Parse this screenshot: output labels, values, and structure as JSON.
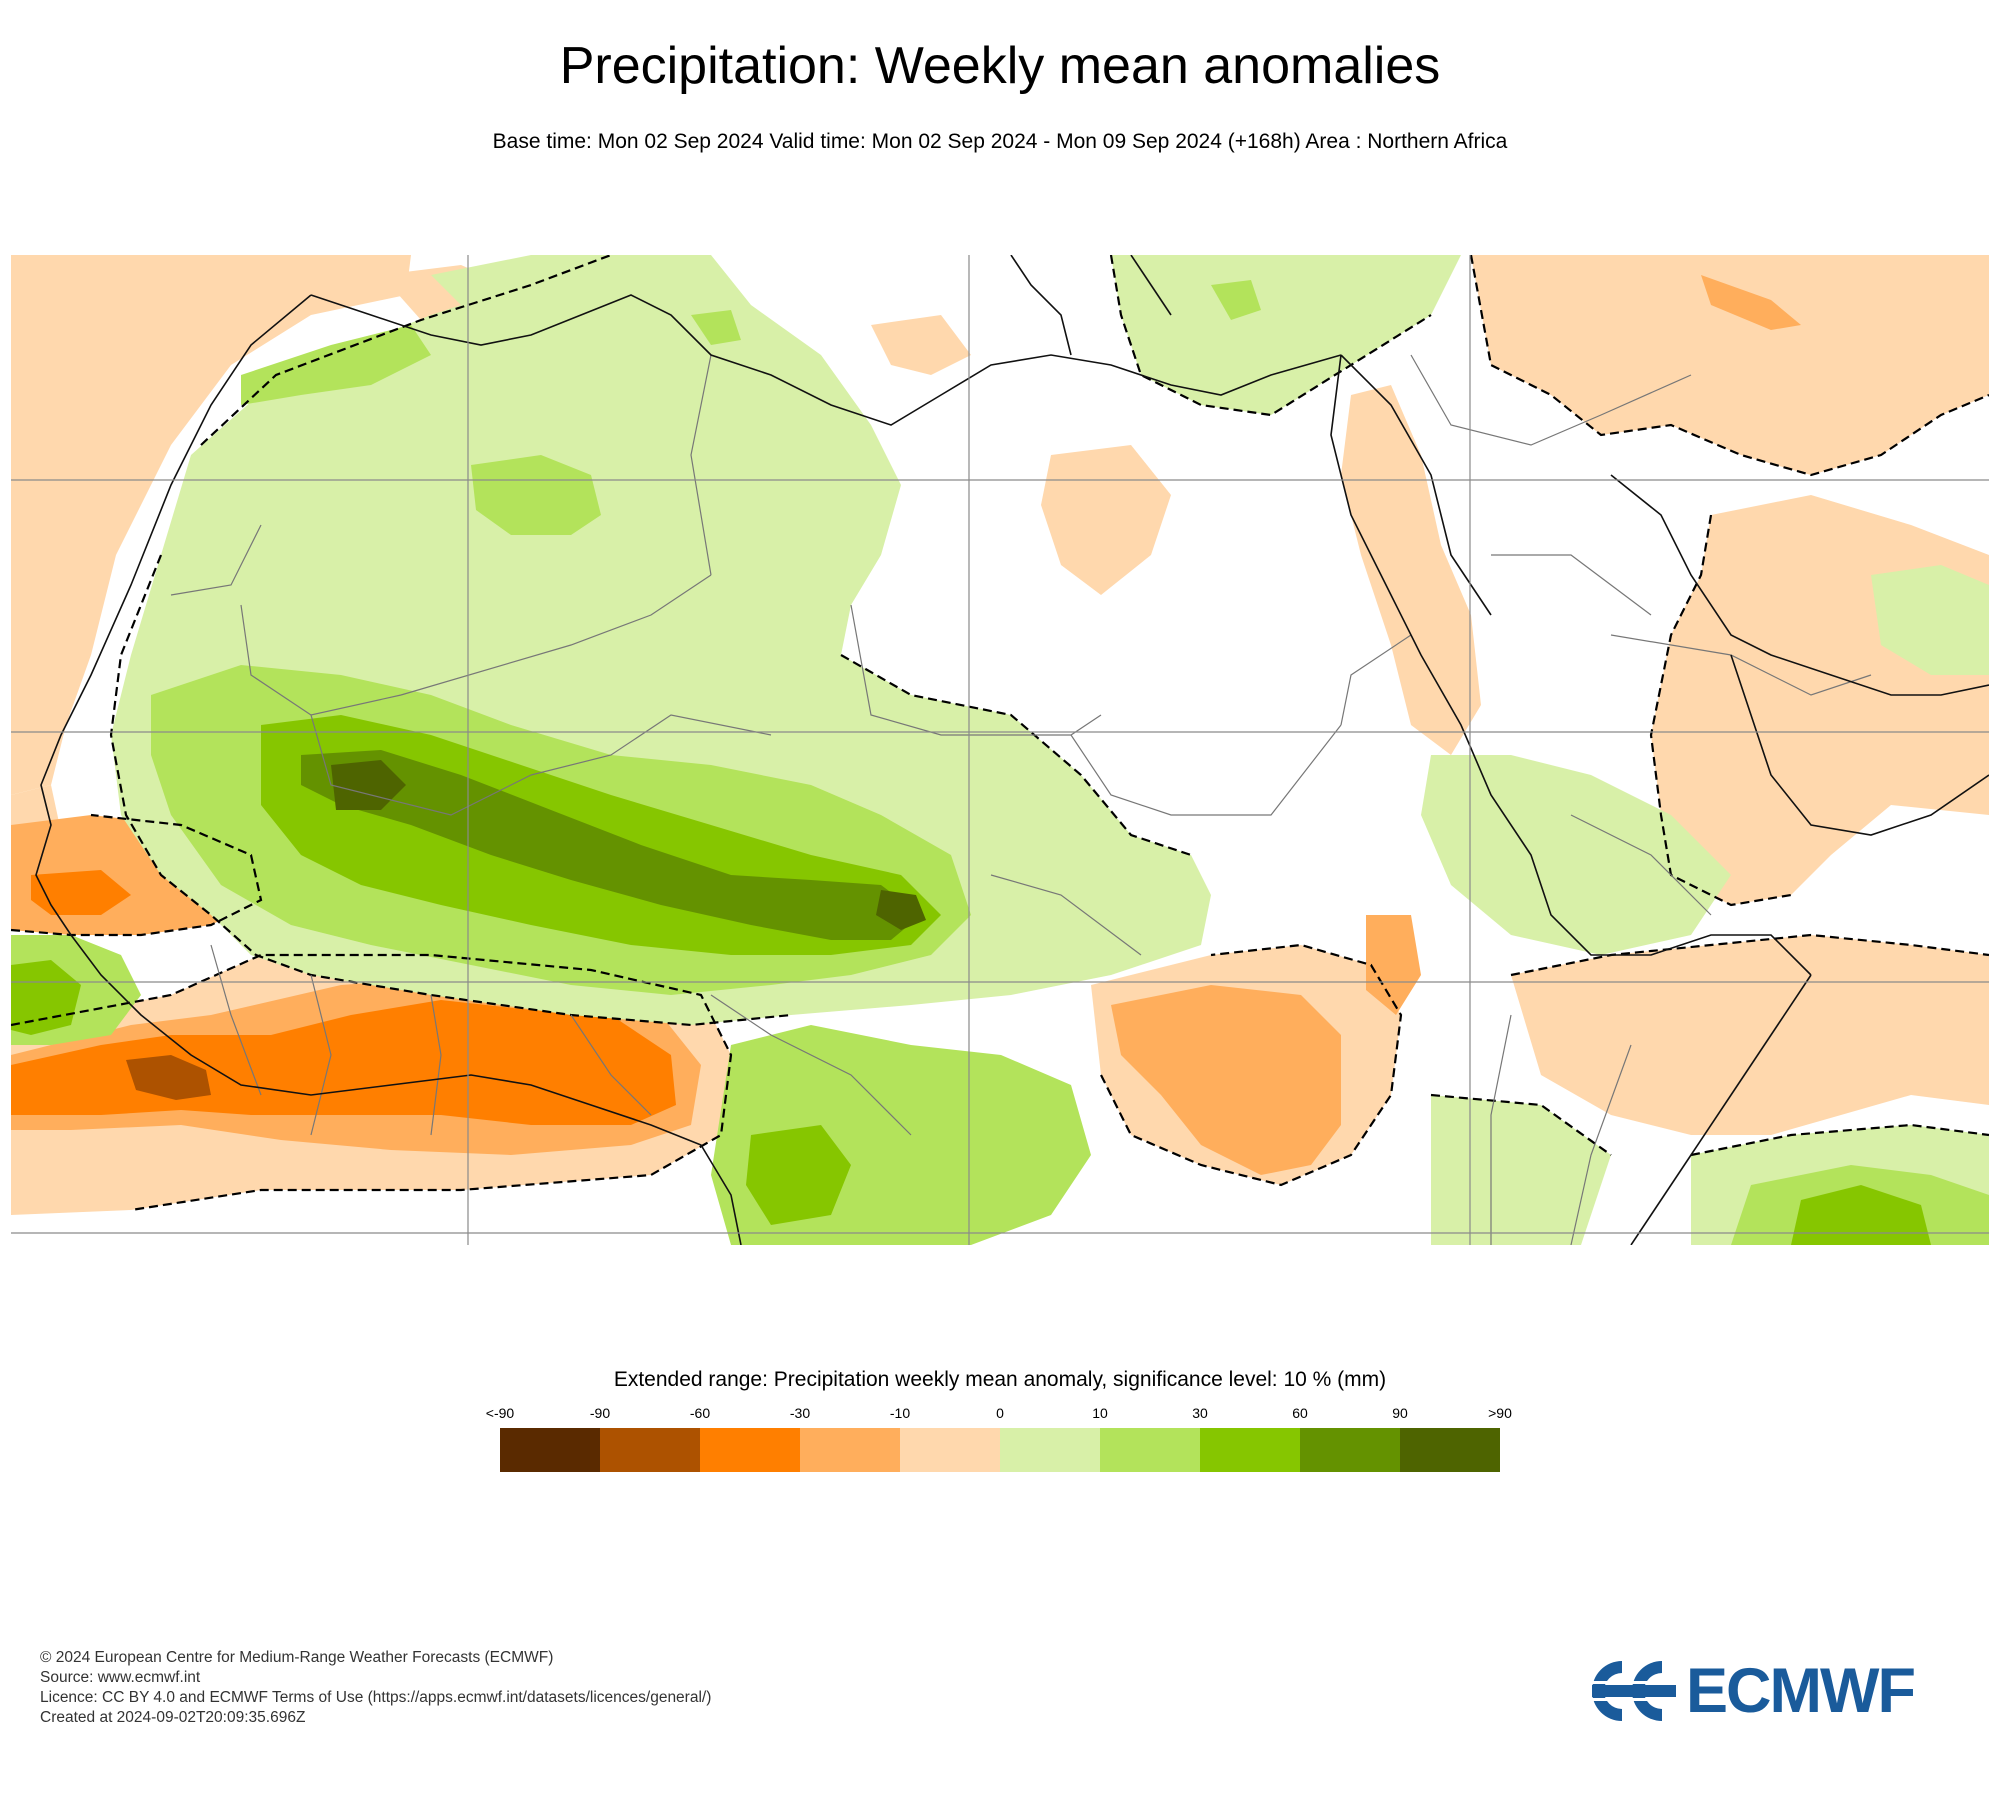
{
  "title": "Precipitation: Weekly mean anomalies",
  "subtitle": "Base time: Mon 02 Sep 2024 Valid time: Mon 02 Sep 2024 - Mon 09 Sep 2024 (+168h) Area : Northern Africa",
  "legend": {
    "title": "Extended range: Precipitation weekly mean anomaly, significance level: 10 % (mm)",
    "ticks": [
      "<-90",
      "-90",
      "-60",
      "-30",
      "-10",
      "0",
      "10",
      "30",
      "60",
      "90",
      ">90"
    ],
    "colors": [
      "#5a2a00",
      "#ad5200",
      "#ff7f00",
      "#ffae5c",
      "#ffd8ad",
      "#d8f0a8",
      "#b3e35b",
      "#86c600",
      "#649200",
      "#4e6400"
    ]
  },
  "footer": {
    "copyright": "© 2024 European Centre for Medium-Range Weather Forecasts (ECMWF)",
    "source": "Source: www.ecmwf.int",
    "licence": "Licence: CC BY 4.0 and ECMWF Terms of Use (https://apps.ecmwf.int/datasets/licences/general/)",
    "created": "Created at 2024-09-02T20:09:35.696Z"
  },
  "logo": {
    "text": "ECMWF",
    "color": "#1a5b9b"
  }
}
